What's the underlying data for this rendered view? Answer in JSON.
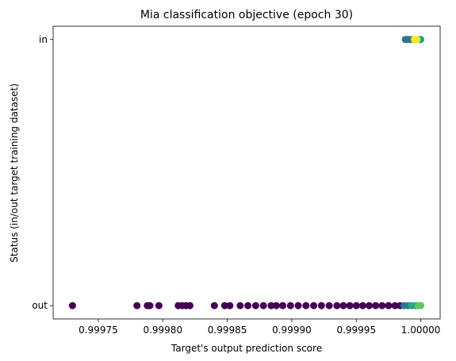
{
  "chart_data": {
    "type": "scatter",
    "title": "Mia classification objective (epoch 30)",
    "xlabel": "Target's output prediction score",
    "ylabel": "Status (in/out target training dataset)",
    "xlim": [
      0.999715,
      1.000015
    ],
    "ylim": [
      -0.05,
      1.05
    ],
    "xticks": [
      0.99975,
      0.9998,
      0.99985,
      0.9999,
      0.99995,
      1.0
    ],
    "xtick_labels": [
      "0.99975",
      "0.99980",
      "0.99985",
      "0.99990",
      "0.99995",
      "1.00000"
    ],
    "yticks": [
      0,
      1
    ],
    "ytick_labels": [
      "out",
      "in"
    ],
    "grid": false,
    "colormap": "viridis",
    "colors": {
      "purple": "#440154",
      "teal": "#2a788e",
      "green": "#22a884",
      "lightgreen": "#5ec962",
      "yellow": "#fde725"
    },
    "series": [
      {
        "color_key": "purple",
        "points": [
          [
            0.99973,
            0
          ],
          [
            0.99978,
            0
          ],
          [
            0.99979,
            0
          ],
          [
            0.999788,
            0
          ],
          [
            0.999797,
            0
          ],
          [
            0.999812,
            0
          ],
          [
            0.999815,
            0
          ],
          [
            0.999818,
            0
          ],
          [
            0.999821,
            0
          ],
          [
            0.99984,
            0
          ],
          [
            0.999848,
            0
          ],
          [
            0.999852,
            0
          ],
          [
            0.99986,
            0
          ],
          [
            0.999866,
            0
          ],
          [
            0.999872,
            0
          ],
          [
            0.999878,
            0
          ],
          [
            0.999884,
            0
          ],
          [
            0.999888,
            0
          ],
          [
            0.999893,
            0
          ],
          [
            0.999899,
            0
          ],
          [
            0.999905,
            0
          ],
          [
            0.999911,
            0
          ],
          [
            0.999917,
            0
          ],
          [
            0.999923,
            0
          ],
          [
            0.999929,
            0
          ],
          [
            0.999935,
            0
          ],
          [
            0.99994,
            0
          ],
          [
            0.999945,
            0
          ],
          [
            0.99995,
            0
          ],
          [
            0.999955,
            0
          ],
          [
            0.99996,
            0
          ],
          [
            0.999965,
            0
          ],
          [
            0.99997,
            0
          ],
          [
            0.999975,
            0
          ],
          [
            0.99998,
            0
          ],
          [
            0.999984,
            0
          ]
        ]
      },
      {
        "color_key": "teal",
        "points": [
          [
            0.999987,
            0
          ],
          [
            0.99999,
            0
          ],
          [
            0.999988,
            1
          ],
          [
            0.99999,
            1
          ],
          [
            0.999992,
            1
          ]
        ]
      },
      {
        "color_key": "green",
        "points": [
          [
            0.999993,
            0
          ],
          [
            0.999996,
            0
          ],
          [
            0.999999,
            1
          ],
          [
            1.0,
            1
          ]
        ]
      },
      {
        "color_key": "lightgreen",
        "points": [
          [
            0.999998,
            0
          ],
          [
            1.0,
            0
          ]
        ]
      },
      {
        "color_key": "yellow",
        "points": [
          [
            0.999995,
            1
          ],
          [
            0.999997,
            1
          ]
        ]
      }
    ]
  }
}
